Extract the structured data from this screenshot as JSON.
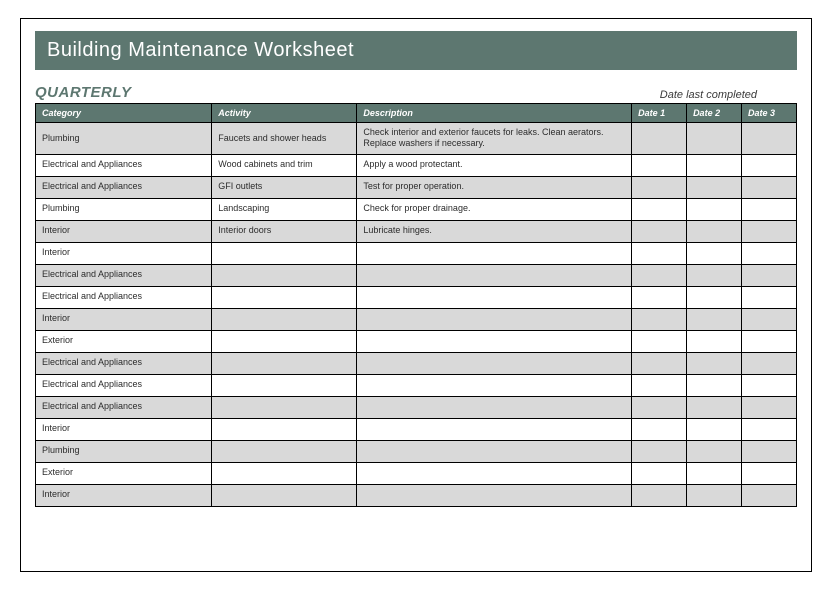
{
  "title": "Building Maintenance Worksheet",
  "period": "QUARTERLY",
  "dateLastCompleted": "Date last completed",
  "colors": {
    "headerBg": "#5d7770",
    "headerText": "#ffffff",
    "shadedRow": "#d9d9d9",
    "plainRow": "#ffffff",
    "border": "#000000",
    "bodyText": "#2c2c2c",
    "periodText": "#5d7770"
  },
  "fonts": {
    "titleFamily": "Century Gothic",
    "titleSize": 20,
    "periodSize": 15,
    "headerSize": 9,
    "cellSize": 9
  },
  "columns": [
    "Category",
    "Activity",
    "Description",
    "Date 1",
    "Date 2",
    "Date 3"
  ],
  "rows": [
    {
      "shaded": true,
      "category": "Plumbing",
      "activity": "Faucets and shower heads",
      "description": "Check interior and exterior faucets for leaks. Clean aerators. Replace washers if necessary.",
      "date1": "",
      "date2": "",
      "date3": ""
    },
    {
      "shaded": false,
      "category": "Electrical and Appliances",
      "activity": "Wood cabinets and trim",
      "description": "Apply a wood protectant.",
      "date1": "",
      "date2": "",
      "date3": ""
    },
    {
      "shaded": true,
      "category": "Electrical and Appliances",
      "activity": "GFI outlets",
      "description": "Test for proper operation.",
      "date1": "",
      "date2": "",
      "date3": ""
    },
    {
      "shaded": false,
      "category": "Plumbing",
      "activity": "Landscaping",
      "description": "Check for proper drainage.",
      "date1": "",
      "date2": "",
      "date3": ""
    },
    {
      "shaded": true,
      "category": "Interior",
      "activity": "Interior doors",
      "description": "Lubricate hinges.",
      "date1": "",
      "date2": "",
      "date3": ""
    },
    {
      "shaded": false,
      "category": "Interior",
      "activity": "",
      "description": "",
      "date1": "",
      "date2": "",
      "date3": ""
    },
    {
      "shaded": true,
      "category": "Electrical and Appliances",
      "activity": "",
      "description": "",
      "date1": "",
      "date2": "",
      "date3": ""
    },
    {
      "shaded": false,
      "category": "Electrical and Appliances",
      "activity": "",
      "description": "",
      "date1": "",
      "date2": "",
      "date3": ""
    },
    {
      "shaded": true,
      "category": "Interior",
      "activity": "",
      "description": "",
      "date1": "",
      "date2": "",
      "date3": ""
    },
    {
      "shaded": false,
      "category": "Exterior",
      "activity": "",
      "description": "",
      "date1": "",
      "date2": "",
      "date3": ""
    },
    {
      "shaded": true,
      "category": "Electrical and Appliances",
      "activity": "",
      "description": "",
      "date1": "",
      "date2": "",
      "date3": ""
    },
    {
      "shaded": false,
      "category": "Electrical and Appliances",
      "activity": "",
      "description": "",
      "date1": "",
      "date2": "",
      "date3": ""
    },
    {
      "shaded": true,
      "category": "Electrical and Appliances",
      "activity": "",
      "description": "",
      "date1": "",
      "date2": "",
      "date3": ""
    },
    {
      "shaded": false,
      "category": "Interior",
      "activity": "",
      "description": "",
      "date1": "",
      "date2": "",
      "date3": ""
    },
    {
      "shaded": true,
      "category": "Plumbing",
      "activity": "",
      "description": "",
      "date1": "",
      "date2": "",
      "date3": ""
    },
    {
      "shaded": false,
      "category": "Exterior",
      "activity": "",
      "description": "",
      "date1": "",
      "date2": "",
      "date3": ""
    },
    {
      "shaded": true,
      "category": "Interior",
      "activity": "",
      "description": "",
      "date1": "",
      "date2": "",
      "date3": ""
    }
  ]
}
